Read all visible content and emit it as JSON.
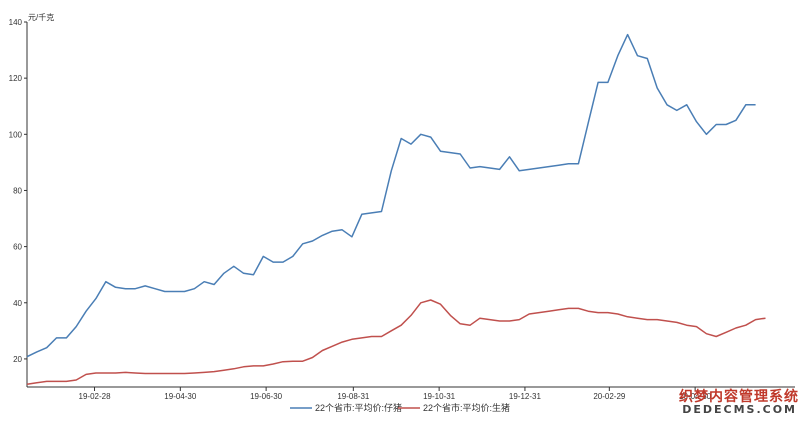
{
  "chart_data": {
    "type": "line",
    "ylabel": "元/千克",
    "ylim": [
      10,
      140
    ],
    "yticks": [
      20,
      40,
      60,
      80,
      100,
      120,
      140
    ],
    "xticks": [
      "19-02-28",
      "19-04-30",
      "19-06-30",
      "19-08-31",
      "19-10-31",
      "19-12-31",
      "20-02-29",
      "20-04-30"
    ],
    "legend_position": "bottom",
    "series": [
      {
        "name": "22个省市:平均价:仔猪",
        "color": "#4a7eb5",
        "x": [
          "19-01-11",
          "19-01-18",
          "19-01-25",
          "19-02-01",
          "19-02-08",
          "19-02-15",
          "19-02-22",
          "19-03-01",
          "19-03-08",
          "19-03-15",
          "19-03-22",
          "19-03-29",
          "19-04-05",
          "19-04-12",
          "19-04-19",
          "19-04-26",
          "19-05-03",
          "19-05-10",
          "19-05-17",
          "19-05-24",
          "19-05-31",
          "19-06-07",
          "19-06-14",
          "19-06-21",
          "19-06-28",
          "19-07-05",
          "19-07-12",
          "19-07-19",
          "19-07-26",
          "19-08-02",
          "19-08-09",
          "19-08-16",
          "19-08-23",
          "19-08-30",
          "19-09-06",
          "19-09-13",
          "19-09-20",
          "19-09-27",
          "19-10-04",
          "19-10-11",
          "19-10-18",
          "19-10-25",
          "19-11-01",
          "19-11-08",
          "19-11-15",
          "19-11-22",
          "19-11-29",
          "19-12-06",
          "19-12-13",
          "19-12-20",
          "19-12-27",
          "20-01-03",
          "20-01-10",
          "20-01-17",
          "20-01-24",
          "20-01-31",
          "20-02-07",
          "20-02-14",
          "20-02-21",
          "20-02-28",
          "20-03-06",
          "20-03-13",
          "20-03-20",
          "20-03-27",
          "20-04-03",
          "20-04-10",
          "20-04-17",
          "20-04-24",
          "20-05-01",
          "20-05-08",
          "20-05-15",
          "20-05-22",
          "20-05-29",
          "20-06-05",
          "20-06-12",
          "20-06-19",
          "20-06-26",
          "20-07-03",
          "20-07-10"
        ],
        "values": [
          20.8,
          22.5,
          24.0,
          27.5,
          27.5,
          31.5,
          37.0,
          41.5,
          47.5,
          45.5,
          45.0,
          45.0,
          46.0,
          45.0,
          44.0,
          44.0,
          44.0,
          45.0,
          47.5,
          46.5,
          50.5,
          53.0,
          50.5,
          50.0,
          56.5,
          54.5,
          54.5,
          56.5,
          61.0,
          62.0,
          64.0,
          65.5,
          66.0,
          63.5,
          71.5,
          72.0,
          72.5,
          87.0,
          98.5,
          96.5,
          100.0,
          99.0,
          94.0,
          93.5,
          93.0,
          88.0,
          88.5,
          88.0,
          87.5,
          92.0,
          87.0,
          87.5,
          88.0,
          88.5,
          89.0,
          89.5,
          89.5,
          104.0,
          118.5,
          118.5,
          128.0,
          135.5,
          128.0,
          127.0,
          116.5,
          110.5,
          108.5,
          110.5,
          104.5,
          100.0,
          103.5,
          103.5,
          105.0,
          110.5,
          110.5,
          null,
          null,
          null,
          null
        ]
      },
      {
        "name": "22个省市:平均价:生猪",
        "color": "#c0504d",
        "x": [
          "19-01-11",
          "19-01-18",
          "19-01-25",
          "19-02-01",
          "19-02-08",
          "19-02-15",
          "19-02-22",
          "19-03-01",
          "19-03-08",
          "19-03-15",
          "19-03-22",
          "19-03-29",
          "19-04-05",
          "19-04-12",
          "19-04-19",
          "19-04-26",
          "19-05-03",
          "19-05-10",
          "19-05-17",
          "19-05-24",
          "19-05-31",
          "19-06-07",
          "19-06-14",
          "19-06-21",
          "19-06-28",
          "19-07-05",
          "19-07-12",
          "19-07-19",
          "19-07-26",
          "19-08-02",
          "19-08-09",
          "19-08-16",
          "19-08-23",
          "19-08-30",
          "19-09-06",
          "19-09-13",
          "19-09-20",
          "19-09-27",
          "19-10-04",
          "19-10-11",
          "19-10-18",
          "19-10-25",
          "19-11-01",
          "19-11-08",
          "19-11-15",
          "19-11-22",
          "19-11-29",
          "19-12-06",
          "19-12-13",
          "19-12-20",
          "19-12-27",
          "20-01-03",
          "20-01-10",
          "20-01-17",
          "20-01-24",
          "20-01-31",
          "20-02-07",
          "20-02-14",
          "20-02-21",
          "20-02-28",
          "20-03-06",
          "20-03-13",
          "20-03-20",
          "20-03-27",
          "20-04-03",
          "20-04-10",
          "20-04-17",
          "20-04-24",
          "20-05-01",
          "20-05-08",
          "20-05-15",
          "20-05-22",
          "20-05-29",
          "20-06-05",
          "20-06-12",
          "20-06-19",
          "20-06-26",
          "20-07-03",
          "20-07-10"
        ],
        "values": [
          11.0,
          11.5,
          12.0,
          12.0,
          12.0,
          12.5,
          14.5,
          15.0,
          15.0,
          15.0,
          15.2,
          15.0,
          14.8,
          14.8,
          14.8,
          14.8,
          14.8,
          15.0,
          15.2,
          15.5,
          16.0,
          16.5,
          17.2,
          17.5,
          17.5,
          18.2,
          19.0,
          19.2,
          19.2,
          20.5,
          23.0,
          24.5,
          26.0,
          27.0,
          27.5,
          28.0,
          28.0,
          30.0,
          32.0,
          35.5,
          40.0,
          41.0,
          39.5,
          35.5,
          32.5,
          32.0,
          34.5,
          34.0,
          33.5,
          33.5,
          34.0,
          36.0,
          36.5,
          37.0,
          37.5,
          38.0,
          38.0,
          37.0,
          36.5,
          36.5,
          36.0,
          35.0,
          34.5,
          34.0,
          34.0,
          33.5,
          33.0,
          32.0,
          31.5,
          29.0,
          28.0,
          29.5,
          31.0,
          32.0,
          34.0,
          34.5,
          null,
          null,
          null
        ]
      }
    ]
  },
  "watermark": {
    "line1": "织梦内容管理系统",
    "line2": "DEDECMS.COM"
  }
}
